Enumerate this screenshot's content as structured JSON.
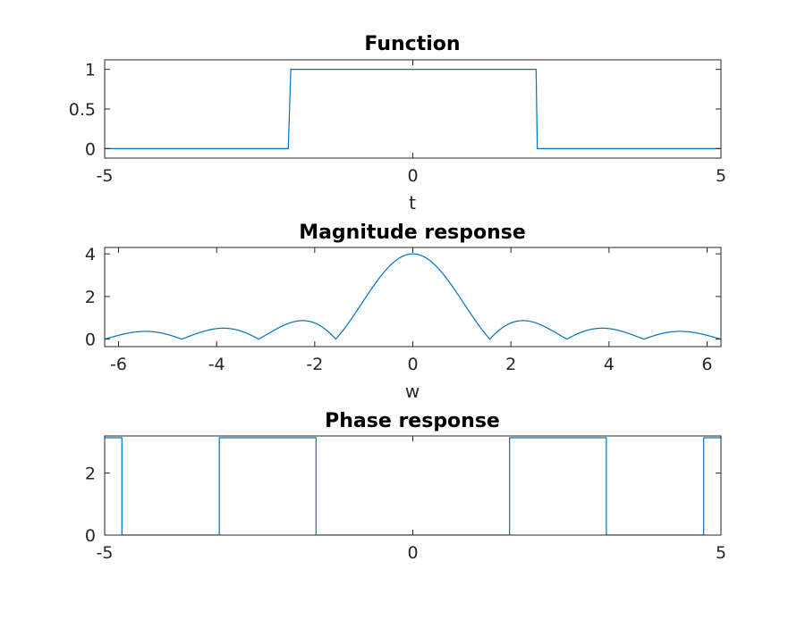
{
  "chart_data": [
    {
      "type": "line",
      "title": "Function",
      "xlabel": "t",
      "ylabel": "",
      "xlim": [
        -5,
        5
      ],
      "ylim": [
        -0.12,
        1.12
      ],
      "xticks": [
        -5,
        0,
        5
      ],
      "yticks": [
        0,
        0.5,
        1
      ],
      "xtick_labels": [
        "-5",
        "0",
        "5"
      ],
      "ytick_labels": [
        "0",
        "0.5",
        "1"
      ],
      "grid": false,
      "series": [
        {
          "x": [
            -5,
            -2.02,
            -1.98,
            2.0,
            2.02,
            5
          ],
          "y": [
            0,
            0,
            1,
            1,
            0,
            0
          ]
        }
      ]
    },
    {
      "type": "line",
      "title": "Magnitude response",
      "xlabel": "w",
      "ylabel": "",
      "xlim": [
        -6.283,
        6.283
      ],
      "ylim": [
        -0.35,
        4.3
      ],
      "xticks": [
        -6,
        -4,
        -2,
        0,
        2,
        4,
        6
      ],
      "yticks": [
        0,
        2,
        4
      ],
      "xtick_labels": [
        "-6",
        "-4",
        "-2",
        "0",
        "2",
        "4",
        "6"
      ],
      "ytick_labels": [
        "0",
        "2",
        "4"
      ],
      "grid": false,
      "series": [
        {
          "function": "|2 sin(2w)/w|",
          "x_range": [
            -6.283,
            6.283
          ],
          "peak": 4
        }
      ]
    },
    {
      "type": "line",
      "title": "Phase response",
      "xlabel": "",
      "ylabel": "",
      "xlim": [
        -5,
        5
      ],
      "ylim": [
        0,
        3.2
      ],
      "xticks": [
        -5,
        0,
        5
      ],
      "yticks": [
        0,
        2
      ],
      "xtick_labels": [
        "-5",
        "0",
        "5"
      ],
      "ytick_labels": [
        "0",
        "2"
      ],
      "grid": false,
      "series": [
        {
          "x": [
            -5,
            -4.72,
            -4.72,
            -3.14,
            -3.14,
            -1.57,
            -1.57,
            1.57,
            1.57,
            3.14,
            3.14,
            4.72,
            4.72,
            5
          ],
          "y": [
            3.1416,
            3.1416,
            0,
            0,
            3.1416,
            3.1416,
            0,
            0,
            3.1416,
            3.1416,
            0,
            0,
            3.1416,
            3.1416
          ]
        }
      ]
    }
  ],
  "colors": {
    "line": "#0072BD",
    "axes": "#262626"
  }
}
